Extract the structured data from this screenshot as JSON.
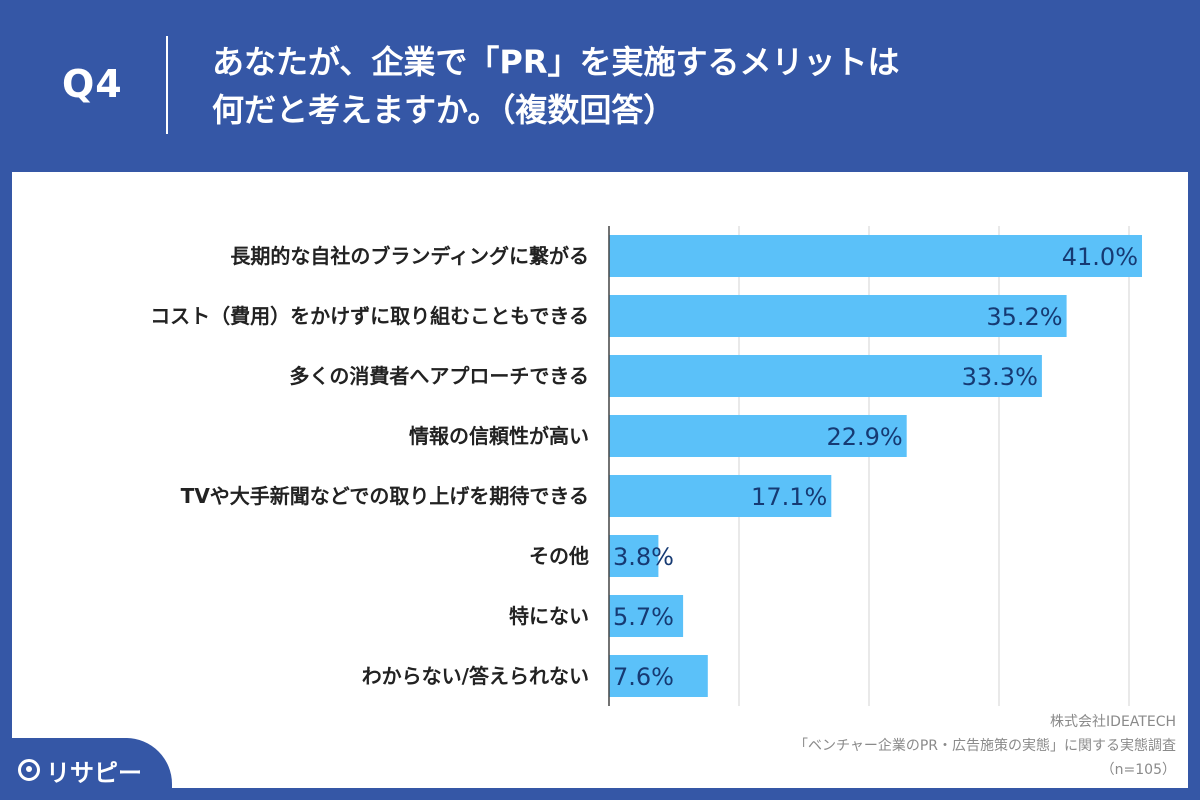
{
  "header": {
    "q_number": "Q4",
    "title_line1": "あなたが、企業で「PR」を実施するメリットは",
    "title_line2": "何だと考えますか。（複数回答）"
  },
  "source": {
    "company": "株式会社IDEATECH",
    "survey": "「ベンチャー企業のPR・広告施策の実態」に関する実態調査",
    "n": "（n=105）"
  },
  "logo": {
    "text": "リサピー"
  },
  "colors": {
    "header_bg": "#3557a6",
    "bar": "#5bc1f9",
    "value_text": "#163a73",
    "grid": "#d3d3d3"
  },
  "chart_data": {
    "type": "bar",
    "orientation": "horizontal",
    "categories": [
      "長期的な自社のブランディングに繋がる",
      "コスト（費用）をかけずに取り組むこともできる",
      "多くの消費者へアプローチできる",
      "情報の信頼性が高い",
      "TVや大手新聞などでの取り上げを期待できる",
      "その他",
      "特にない",
      "わからない/答えられない"
    ],
    "values": [
      41.0,
      35.2,
      33.3,
      22.9,
      17.1,
      3.8,
      5.7,
      7.6
    ],
    "value_labels": [
      "41.0%",
      "35.2%",
      "33.3%",
      "22.9%",
      "17.1%",
      "3.8%",
      "5.7%",
      "7.6%"
    ],
    "xlim": [
      0,
      50
    ],
    "grid": true,
    "unit": "%"
  }
}
